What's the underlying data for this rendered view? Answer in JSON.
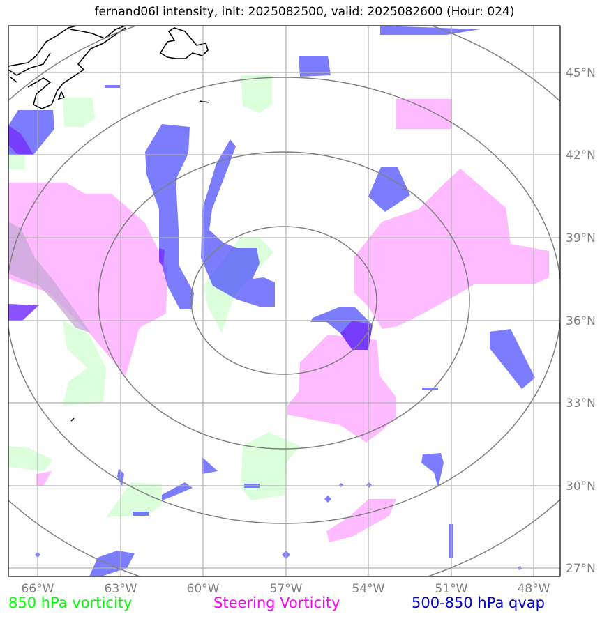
{
  "title": "fernand06l intensity, init: 2025082500, valid: 2025082600 (Hour: 024)",
  "map": {
    "lat_labels": [
      "45°N",
      "42°N",
      "39°N",
      "36°N",
      "33°N",
      "30°N",
      "27°N"
    ],
    "lon_labels": [
      "66°W",
      "63°W",
      "60°W",
      "57°W",
      "54°W",
      "51°W",
      "48°W"
    ]
  },
  "legend": {
    "vort850": {
      "label": "850 hPa vorticity",
      "color": "#00ff00"
    },
    "steering": {
      "label": "Steering Vorticity",
      "color": "#ff00ff"
    },
    "qvap": {
      "label": "500-850 hPa qvap",
      "color": "#0000cc"
    }
  },
  "colors": {
    "vort850_fill": "#ccffcc",
    "steering_fill": "#ffaaff",
    "qvap_fill": "#4444ff",
    "grid": "#b0b0b0",
    "range_rings": "#808080"
  }
}
